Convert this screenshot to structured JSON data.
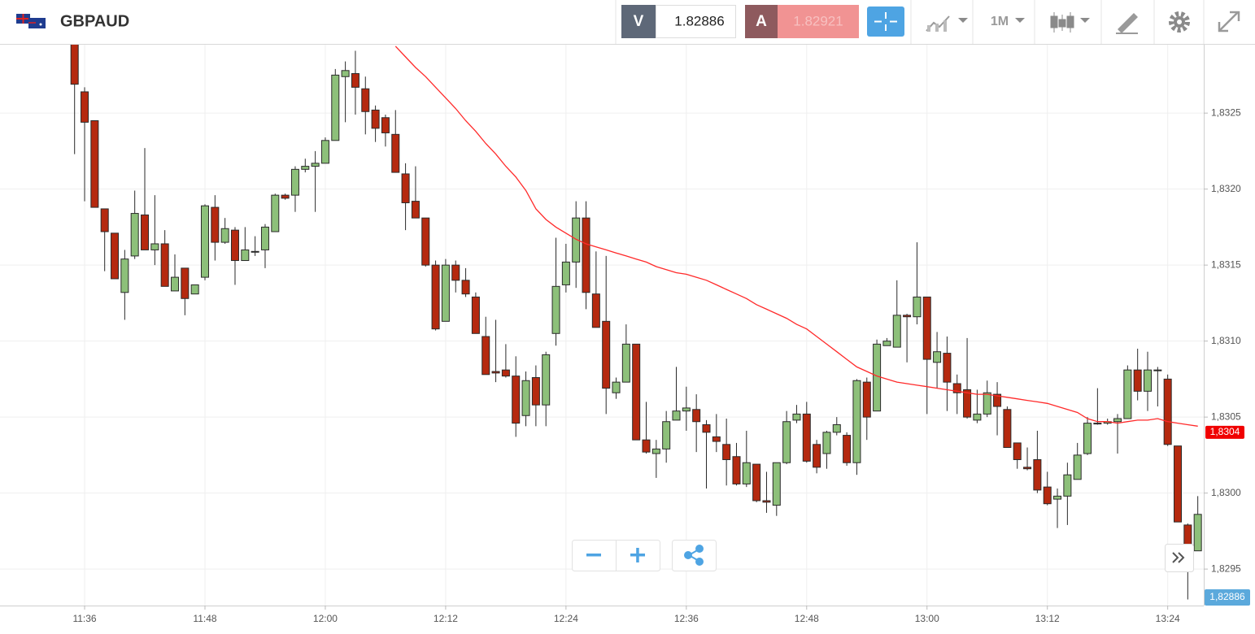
{
  "header": {
    "symbol": "GBPAUD",
    "sell_label": "V",
    "sell_price": 1.82886,
    "buy_label": "A",
    "buy_price": 1.82921,
    "timeframe": "1M"
  },
  "chart_data": {
    "type": "candlestick",
    "categories": [
      null,
      "11:36",
      null,
      null,
      null,
      null,
      null,
      null,
      null,
      null,
      null,
      null,
      null,
      "11:48",
      null,
      null,
      null,
      null,
      null,
      null,
      null,
      null,
      null,
      null,
      null,
      "12:00",
      null,
      null,
      null,
      null,
      null,
      null,
      null,
      null,
      null,
      null,
      null,
      "12:12",
      null,
      null,
      null,
      null,
      null,
      null,
      null,
      null,
      null,
      null,
      null,
      "12:24",
      null,
      null,
      null,
      null,
      null,
      null,
      null,
      null,
      null,
      null,
      null,
      "12:36",
      null,
      null,
      null,
      null,
      null,
      null,
      null,
      null,
      null,
      null,
      null,
      "12:48",
      null,
      null,
      null,
      null,
      null,
      null,
      null,
      null,
      null,
      null,
      null,
      "13:00",
      null,
      null,
      null,
      null,
      null,
      null,
      null,
      null,
      null,
      null,
      null,
      "13:12",
      null,
      null,
      null,
      null,
      null,
      null,
      null,
      null,
      null,
      null,
      null,
      "13:24",
      null,
      null,
      null
    ],
    "open": [
      1.833,
      1.83264,
      1.83245,
      1.83187,
      1.83171,
      1.83132,
      1.83156,
      1.83183,
      1.8316,
      1.83164,
      1.83133,
      1.83148,
      1.83131,
      1.83142,
      1.83188,
      1.83165,
      1.83173,
      1.83153,
      1.83159,
      1.8316,
      1.83172,
      1.83196,
      1.83196,
      1.83213,
      1.83215,
      1.83217,
      1.83232,
      1.83274,
      1.83276,
      1.83266,
      1.83252,
      1.83247,
      1.83236,
      1.8321,
      1.83192,
      1.83181,
      1.8315,
      1.83113,
      1.8315,
      1.8314,
      1.83129,
      1.83103,
      1.8308,
      1.83081,
      1.83077,
      1.83051,
      1.83076,
      1.83058,
      1.83105,
      1.83137,
      1.83152,
      1.83181,
      1.83131,
      1.83113,
      1.83066,
      1.83073,
      1.83098,
      1.83035,
      1.83026,
      1.83029,
      1.83048,
      1.83054,
      1.83055,
      1.83045,
      1.83037,
      1.83032,
      1.83024,
      1.83006,
      1.83019,
      1.82995,
      1.82992,
      1.8302,
      1.83048,
      1.83052,
      1.83032,
      1.83026,
      1.8304,
      1.83038,
      1.8302,
      1.83073,
      1.83054,
      1.83097,
      1.83096,
      1.83117,
      1.83116,
      1.83129,
      1.83086,
      1.83092,
      1.83072,
      1.83068,
      1.83048,
      1.83052,
      1.83065,
      1.83055,
      1.83033,
      1.83017,
      1.83022,
      1.83004,
      1.82996,
      1.82998,
      1.83009,
      1.83026,
      1.83046,
      1.83046,
      1.83047,
      1.83049,
      1.83081,
      1.83067,
      1.83081,
      1.83075,
      1.83031,
      1.82979,
      1.82962
    ],
    "high": [
      1.83305,
      1.83267,
      1.83245,
      1.83187,
      1.83171,
      1.8316,
      1.83199,
      1.83227,
      1.83196,
      1.83173,
      1.83157,
      1.83148,
      1.83137,
      1.8319,
      1.83196,
      1.83181,
      1.83175,
      1.83175,
      1.83169,
      1.83177,
      1.83197,
      1.83197,
      1.83215,
      1.8322,
      1.83225,
      1.83234,
      1.83279,
      1.83284,
      1.83291,
      1.83274,
      1.83255,
      1.83249,
      1.83252,
      1.83217,
      1.83215,
      1.83181,
      1.83153,
      1.83154,
      1.83153,
      1.83148,
      1.83132,
      1.83116,
      1.83114,
      1.83098,
      1.8309,
      1.8308,
      1.83084,
      1.83093,
      1.83168,
      1.83164,
      1.83192,
      1.83192,
      1.83159,
      1.83156,
      1.83076,
      1.83111,
      1.83098,
      1.8306,
      1.83035,
      1.83054,
      1.83083,
      1.8307,
      1.83065,
      1.83048,
      1.83052,
      1.83049,
      1.83033,
      1.83041,
      1.83019,
      1.83014,
      1.8302,
      1.83054,
      1.83058,
      1.8306,
      1.83035,
      1.83041,
      1.8305,
      1.8304,
      1.83075,
      1.83076,
      1.83101,
      1.83102,
      1.8314,
      1.83118,
      1.83165,
      1.83129,
      1.83106,
      1.83103,
      1.83078,
      1.83102,
      1.83068,
      1.83074,
      1.83073,
      1.83057,
      1.83033,
      1.8303,
      1.83041,
      1.83014,
      1.83003,
      1.8302,
      1.83033,
      1.8305,
      1.83069,
      1.83049,
      1.83052,
      1.83084,
      1.83095,
      1.83093,
      1.83083,
      1.83078,
      1.83031,
      1.8298,
      1.82998
    ],
    "low": [
      1.83223,
      1.83192,
      1.83188,
      1.83146,
      1.83141,
      1.83114,
      1.83154,
      1.8316,
      1.8315,
      1.83136,
      1.83133,
      1.83117,
      1.83131,
      1.8314,
      1.83153,
      1.83164,
      1.83137,
      1.83153,
      1.83156,
      1.83148,
      1.83172,
      1.83193,
      1.83185,
      1.83211,
      1.83185,
      1.83217,
      1.83232,
      1.83244,
      1.83249,
      1.83236,
      1.83231,
      1.83228,
      1.83211,
      1.83173,
      1.83181,
      1.83149,
      1.83107,
      1.83113,
      1.83132,
      1.83129,
      1.83105,
      1.83078,
      1.83073,
      1.83076,
      1.83037,
      1.83044,
      1.83044,
      1.83044,
      1.83097,
      1.83132,
      1.83135,
      1.83121,
      1.83109,
      1.83052,
      1.83062,
      1.83073,
      1.83035,
      1.83026,
      1.8301,
      1.8302,
      1.83048,
      1.83041,
      1.83027,
      1.83003,
      1.83027,
      1.83005,
      1.83005,
      1.83004,
      1.82994,
      1.82987,
      1.82985,
      1.83019,
      1.83046,
      1.8302,
      1.83013,
      1.83016,
      1.83038,
      1.83018,
      1.83012,
      1.83035,
      1.83054,
      1.83097,
      1.83096,
      1.83086,
      1.83111,
      1.83052,
      1.83069,
      1.83054,
      1.83052,
      1.83049,
      1.83046,
      1.8305,
      1.83038,
      1.8303,
      1.83016,
      1.83015,
      1.83,
      1.82992,
      1.82977,
      1.82979,
      1.83009,
      1.83025,
      1.83045,
      1.83045,
      1.83026,
      1.83049,
      1.83061,
      1.83054,
      1.83057,
      1.83031,
      1.82981,
      1.8293,
      1.82962
    ],
    "close": [
      1.83269,
      1.83244,
      1.83188,
      1.83172,
      1.83141,
      1.83154,
      1.83184,
      1.8316,
      1.83164,
      1.83136,
      1.83142,
      1.83128,
      1.83137,
      1.83189,
      1.83165,
      1.83174,
      1.83153,
      1.8316,
      1.83159,
      1.83175,
      1.83196,
      1.83194,
      1.83213,
      1.83215,
      1.83217,
      1.83232,
      1.83275,
      1.83278,
      1.83267,
      1.83251,
      1.8324,
      1.83237,
      1.83211,
      1.83191,
      1.83181,
      1.8315,
      1.83108,
      1.8315,
      1.8314,
      1.83131,
      1.83105,
      1.83078,
      1.83079,
      1.83077,
      1.83046,
      1.83074,
      1.83058,
      1.83091,
      1.83136,
      1.83152,
      1.83181,
      1.83132,
      1.83109,
      1.83069,
      1.83073,
      1.83098,
      1.83035,
      1.83027,
      1.83029,
      1.83047,
      1.83054,
      1.83056,
      1.83047,
      1.8304,
      1.83034,
      1.83022,
      1.83006,
      1.8302,
      1.82995,
      1.82994,
      1.8302,
      1.83047,
      1.83052,
      1.83021,
      1.83017,
      1.8304,
      1.83045,
      1.8302,
      1.83074,
      1.8305,
      1.83098,
      1.831,
      1.83117,
      1.83116,
      1.83129,
      1.83088,
      1.83093,
      1.83073,
      1.83066,
      1.8305,
      1.83052,
      1.83066,
      1.83057,
      1.8303,
      1.83022,
      1.83016,
      1.83002,
      1.82993,
      1.82998,
      1.83012,
      1.83025,
      1.83046,
      1.83046,
      1.83047,
      1.83049,
      1.83081,
      1.83067,
      1.83081,
      1.83081,
      1.83032,
      1.82981,
      1.82965,
      1.82986
    ],
    "up_color": "#8dc07a",
    "down_color": "#b5290f",
    "ma": {
      "color": "#ff2a2a",
      "label": {
        "value": 1.8304,
        "label": "1,8304"
      },
      "values": [
        null,
        null,
        null,
        null,
        null,
        null,
        null,
        null,
        null,
        null,
        null,
        null,
        null,
        null,
        null,
        null,
        null,
        null,
        null,
        null,
        null,
        null,
        null,
        null,
        null,
        null,
        null,
        null,
        null,
        null,
        null,
        null,
        1.83294,
        1.83287,
        1.8328,
        1.83274,
        1.83267,
        1.8326,
        1.83253,
        1.83245,
        1.83238,
        1.8323,
        1.83223,
        1.83215,
        1.83208,
        1.83199,
        1.83187,
        1.8318,
        1.83175,
        1.83171,
        1.83167,
        1.83164,
        1.83162,
        1.8316,
        1.83158,
        1.83156,
        1.83154,
        1.83152,
        1.83149,
        1.83147,
        1.83145,
        1.83144,
        1.83142,
        1.8314,
        1.83137,
        1.83134,
        1.83131,
        1.83128,
        1.83124,
        1.83121,
        1.83118,
        1.83115,
        1.83111,
        1.83108,
        1.83103,
        1.83098,
        1.83093,
        1.83088,
        1.83083,
        1.8308,
        1.83077,
        1.83075,
        1.83073,
        1.83072,
        1.83071,
        1.8307,
        1.83069,
        1.83068,
        1.83067,
        1.83066,
        1.83065,
        1.83065,
        1.83064,
        1.83063,
        1.83062,
        1.83061,
        1.8306,
        1.83059,
        1.83057,
        1.83055,
        1.83053,
        1.83049,
        1.83047,
        1.83047,
        1.83046,
        1.83047,
        1.83048,
        1.83048,
        1.83049,
        1.83047,
        1.83046,
        1.83045,
        1.83044
      ]
    },
    "price_label": {
      "value": 1.82886,
      "label": "1,82886"
    },
    "ylim": [
      1.82926,
      1.83295
    ],
    "yticks": [
      {
        "value": 1.8295,
        "label": "1,8295"
      },
      {
        "value": 1.83,
        "label": "1,8300"
      },
      {
        "value": 1.8305,
        "label": "1,8305"
      },
      {
        "value": 1.831,
        "label": "1,8310"
      },
      {
        "value": 1.8315,
        "label": "1,8315"
      },
      {
        "value": 1.832,
        "label": "1,8320"
      },
      {
        "value": 1.8325,
        "label": "1,8325"
      }
    ],
    "grid": true
  }
}
